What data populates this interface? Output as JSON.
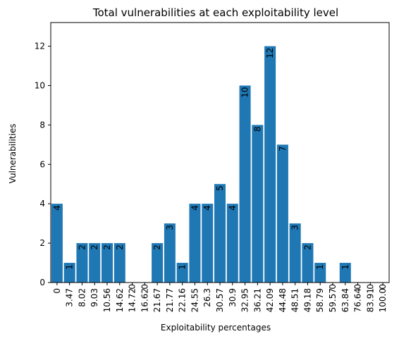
{
  "chart_data": {
    "type": "bar",
    "title": "Total vulnerabilities at each exploitability level",
    "xlabel": "Exploitability percentages",
    "ylabel": "Vulnerabilities",
    "categories": [
      "0",
      "3.47",
      "8.02",
      "9.03",
      "10.56",
      "14.62",
      "14.72",
      "16.62",
      "21.67",
      "21.77",
      "22.16",
      "24.55",
      "26.3",
      "30.57",
      "30.9",
      "32.95",
      "36.21",
      "42.09",
      "44.48",
      "48.51",
      "49.18",
      "58.79",
      "59.57",
      "63.84",
      "76.64",
      "83.91",
      "100.0"
    ],
    "values": [
      4,
      1,
      2,
      2,
      2,
      2,
      0,
      0,
      2,
      3,
      1,
      4,
      4,
      5,
      4,
      10,
      8,
      12,
      7,
      3,
      2,
      1,
      0,
      1,
      0,
      0,
      0
    ],
    "ylim": [
      0,
      13.2
    ],
    "yticks": [
      0,
      2,
      4,
      6,
      8,
      10,
      12
    ],
    "bar_color": "#1f77b4",
    "grid": false,
    "legend": "none"
  }
}
